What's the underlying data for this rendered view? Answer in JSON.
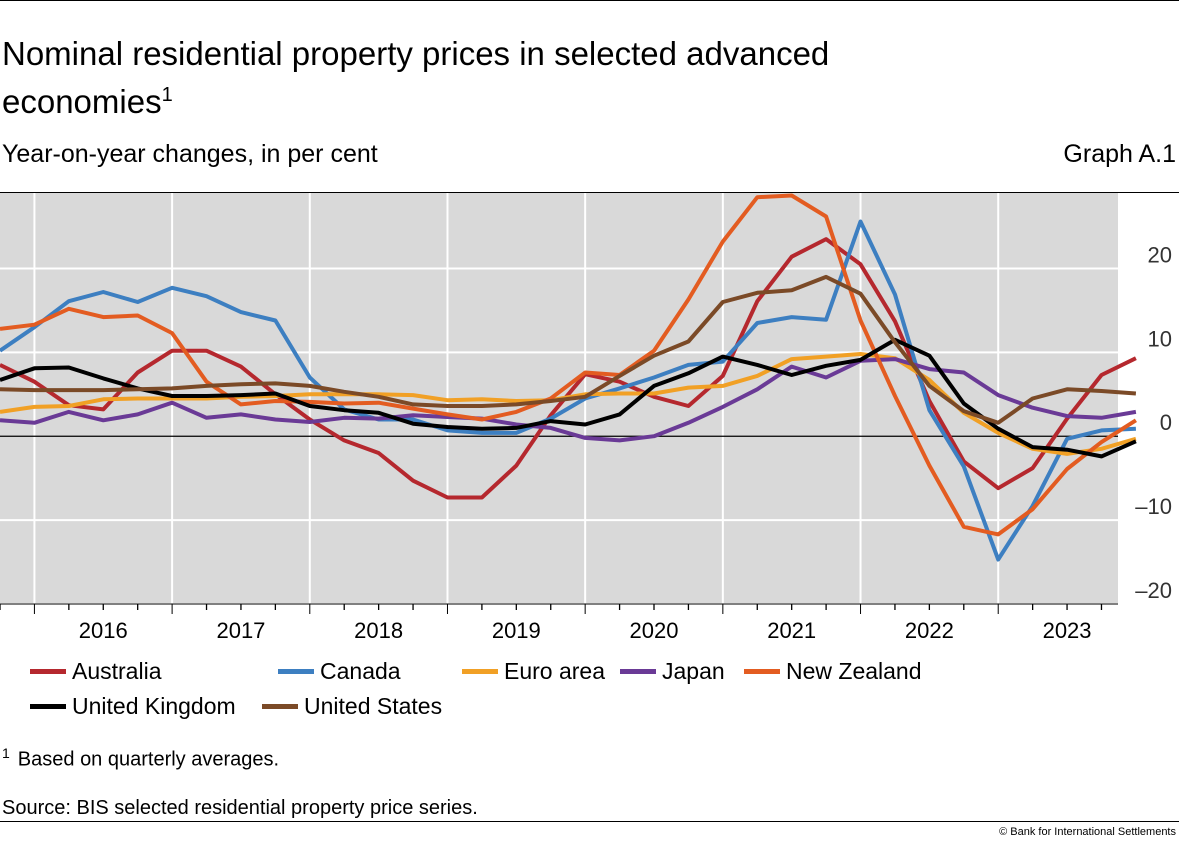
{
  "header": {
    "title": "Nominal residential property prices in selected advanced economies",
    "title_footnote": "1",
    "subtitle": "Year-on-year changes, in per cent",
    "graph_id": "Graph A.1"
  },
  "footer": {
    "footnote_mark": "1",
    "footnote_text": "Based on quarterly averages.",
    "source": "Source: BIS selected residential property price series.",
    "copyright": "© Bank for International Settlements"
  },
  "chart_data": {
    "type": "line",
    "title": "Nominal residential property prices in selected advanced economies",
    "xlabel": "",
    "ylabel": "Year-on-year changes, in per cent",
    "x_start": 2015.75,
    "x_step": 0.25,
    "xlim": [
      2015.75,
      2023.87
    ],
    "ylim": [
      -20,
      29
    ],
    "grid": true,
    "year_ticks": [
      "2016",
      "2017",
      "2018",
      "2019",
      "2020",
      "2021",
      "2022",
      "2023"
    ],
    "y_ticks": [
      {
        "value": 20,
        "label": "20"
      },
      {
        "value": 10,
        "label": "10"
      },
      {
        "value": 0,
        "label": "0"
      },
      {
        "value": -10,
        "label": "–10"
      },
      {
        "value": -20,
        "label": "–20"
      }
    ],
    "legend_position": "bottom",
    "series": [
      {
        "name": "Australia",
        "color": "#b5282e",
        "values": [
          8.5,
          6.5,
          3.7,
          3.2,
          7.6,
          10.2,
          10.2,
          8.3,
          5.0,
          2.0,
          -0.5,
          -2.0,
          -5.3,
          -7.3,
          -7.3,
          -3.5,
          2.5,
          7.4,
          6.5,
          4.7,
          3.6,
          7.2,
          16.1,
          21.4,
          23.5,
          20.5,
          13.7,
          4.2,
          -3.0,
          -6.2,
          -3.8,
          2.1,
          7.3,
          9.3
        ]
      },
      {
        "name": "Canada",
        "color": "#3d7fc1",
        "values": [
          10.2,
          13.0,
          16.1,
          17.2,
          16.0,
          17.7,
          16.7,
          14.8,
          13.8,
          7.0,
          3.2,
          2.0,
          2.0,
          0.7,
          0.4,
          0.4,
          2.1,
          4.5,
          5.7,
          7.0,
          8.5,
          8.9,
          13.5,
          14.2,
          13.9,
          25.6,
          16.9,
          3.1,
          -3.6,
          -14.7,
          -8.3,
          -0.3,
          0.7,
          0.9
        ]
      },
      {
        "name": "Euro area",
        "color": "#f1a025",
        "values": [
          2.9,
          3.5,
          3.6,
          4.4,
          4.5,
          4.5,
          4.5,
          4.7,
          4.8,
          5.0,
          5.0,
          5.0,
          4.9,
          4.3,
          4.4,
          4.2,
          4.3,
          5.0,
          5.1,
          5.1,
          5.8,
          6.0,
          7.2,
          9.2,
          9.5,
          9.8,
          9.3,
          6.7,
          2.8,
          0.4,
          -1.5,
          -2.1,
          -1.5,
          -0.3
        ]
      },
      {
        "name": "Japan",
        "color": "#6a3a96",
        "values": [
          1.9,
          1.6,
          2.9,
          1.9,
          2.6,
          4.0,
          2.2,
          2.6,
          2.0,
          1.7,
          2.2,
          2.1,
          2.5,
          2.3,
          2.1,
          1.4,
          1.0,
          -0.2,
          -0.5,
          0.0,
          1.6,
          3.5,
          5.6,
          8.3,
          7.0,
          9.0,
          9.2,
          8.0,
          7.6,
          4.9,
          3.4,
          2.4,
          2.2,
          2.9
        ]
      },
      {
        "name": "New Zealand",
        "color": "#e35c21",
        "values": [
          12.8,
          13.3,
          15.2,
          14.2,
          14.4,
          12.3,
          6.5,
          3.8,
          4.2,
          4.1,
          3.9,
          4.0,
          3.3,
          2.6,
          2.0,
          2.9,
          4.5,
          7.6,
          7.3,
          10.2,
          16.3,
          23.2,
          28.5,
          28.7,
          26.2,
          13.8,
          4.8,
          -3.5,
          -10.8,
          -11.7,
          -8.7,
          -3.9,
          -0.7,
          1.9
        ]
      },
      {
        "name": "United Kingdom",
        "color": "#000000",
        "values": [
          6.7,
          8.1,
          8.2,
          6.9,
          5.7,
          4.8,
          4.8,
          4.9,
          5.1,
          3.6,
          3.1,
          2.8,
          1.5,
          1.1,
          0.9,
          1.0,
          1.8,
          1.4,
          2.6,
          6.0,
          7.5,
          9.5,
          8.5,
          7.3,
          8.4,
          9.1,
          11.5,
          9.6,
          3.9,
          0.9,
          -1.3,
          -1.6,
          -2.4,
          -0.6
        ]
      },
      {
        "name": "United States",
        "color": "#7b4a27",
        "values": [
          5.6,
          5.5,
          5.5,
          5.5,
          5.6,
          5.7,
          6.0,
          6.2,
          6.3,
          6.0,
          5.3,
          4.7,
          3.8,
          3.6,
          3.6,
          3.8,
          4.2,
          4.7,
          7.2,
          9.6,
          11.3,
          16.0,
          17.1,
          17.4,
          19.0,
          17.0,
          11.2,
          6.0,
          3.0,
          1.6,
          4.5,
          5.6,
          5.4,
          5.1
        ]
      }
    ]
  }
}
